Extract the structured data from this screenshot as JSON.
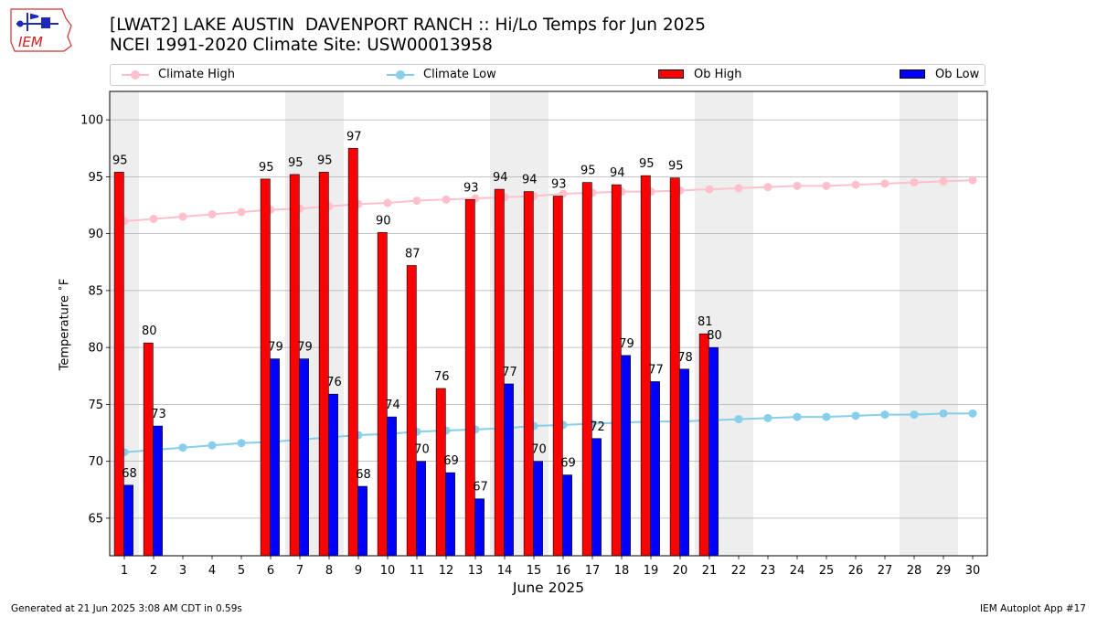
{
  "logo_text": "IEM",
  "footer": {
    "generated": "Generated at 21 Jun 2025 3:08 AM CDT in 0.59s",
    "app": "IEM Autoplot App #17"
  },
  "colors": {
    "climate_high": "#ffc0cb",
    "climate_low": "#87ceeb",
    "ob_high": "#ff0000",
    "ob_low": "#0000ff",
    "weekend_band": "#eeeeee",
    "grid": "#b0b0b0"
  },
  "chart_data": {
    "type": "bar",
    "title": "[LWAT2] LAKE AUSTIN  DAVENPORT RANCH :: Hi/Lo Temps for Jun 2025",
    "subtitle": "NCEI 1991-2020 Climate Site: USW00013958",
    "xlabel": "June 2025",
    "ylabel": "Temperature $^\\circ$F",
    "ylim": [
      61.7,
      102.5
    ],
    "yticks": [
      65,
      70,
      75,
      80,
      85,
      90,
      95,
      100
    ],
    "xlim": [
      0.5,
      30.5
    ],
    "days": [
      1,
      2,
      3,
      4,
      5,
      6,
      7,
      8,
      9,
      10,
      11,
      12,
      13,
      14,
      15,
      16,
      17,
      18,
      19,
      20,
      21,
      22,
      23,
      24,
      25,
      26,
      27,
      28,
      29,
      30
    ],
    "weekend_bands": [
      [
        0.5,
        1.5
      ],
      [
        6.5,
        8.5
      ],
      [
        13.5,
        15.5
      ],
      [
        20.5,
        22.5
      ],
      [
        27.5,
        29.5
      ]
    ],
    "grid": true,
    "legend_placement": "top",
    "legend": [
      "Climate High",
      "Climate Low",
      "Ob High",
      "Ob Low"
    ],
    "series": [
      {
        "name": "Climate High",
        "type": "line",
        "x": [
          1,
          2,
          3,
          4,
          5,
          6,
          7,
          8,
          9,
          10,
          11,
          12,
          13,
          14,
          15,
          16,
          17,
          18,
          19,
          20,
          21,
          22,
          23,
          24,
          25,
          26,
          27,
          28,
          29,
          30
        ],
        "values": [
          91.1,
          91.3,
          91.5,
          91.7,
          91.9,
          92.1,
          92.2,
          92.4,
          92.6,
          92.7,
          92.9,
          93.0,
          93.1,
          93.2,
          93.3,
          93.5,
          93.6,
          93.7,
          93.7,
          93.8,
          93.9,
          94.0,
          94.1,
          94.2,
          94.2,
          94.3,
          94.4,
          94.5,
          94.6,
          94.7
        ]
      },
      {
        "name": "Climate Low",
        "type": "line",
        "x": [
          1,
          2,
          3,
          4,
          5,
          6,
          7,
          8,
          9,
          10,
          11,
          12,
          13,
          14,
          15,
          16,
          17,
          18,
          19,
          20,
          21,
          22,
          23,
          24,
          25,
          26,
          27,
          28,
          29,
          30
        ],
        "values": [
          70.8,
          71.0,
          71.2,
          71.4,
          71.6,
          71.7,
          71.9,
          72.1,
          72.3,
          72.4,
          72.6,
          72.7,
          72.8,
          72.9,
          73.1,
          73.2,
          73.3,
          73.4,
          73.5,
          73.5,
          73.6,
          73.7,
          73.8,
          73.9,
          73.9,
          74.0,
          74.1,
          74.1,
          74.2,
          74.2
        ]
      },
      {
        "name": "Ob High",
        "type": "bar",
        "x": [
          1,
          2,
          6,
          7,
          8,
          9,
          10,
          11,
          12,
          13,
          14,
          15,
          16,
          17,
          18,
          19,
          20,
          21
        ],
        "values": [
          95.4,
          80.4,
          94.8,
          95.2,
          95.4,
          97.5,
          90.1,
          87.2,
          76.4,
          93.0,
          93.9,
          93.7,
          93.3,
          94.5,
          94.3,
          95.1,
          94.9,
          81.2
        ],
        "labels": [
          "95",
          "80",
          "95",
          "95",
          "95",
          "97",
          "90",
          "87",
          "76",
          "93",
          "94",
          "94",
          "93",
          "95",
          "94",
          "95",
          "95",
          "81"
        ]
      },
      {
        "name": "Ob Low",
        "type": "bar",
        "x": [
          1,
          2,
          6,
          7,
          8,
          9,
          10,
          11,
          12,
          13,
          14,
          15,
          16,
          17,
          18,
          19,
          20,
          21
        ],
        "values": [
          67.9,
          73.1,
          79.0,
          79.0,
          75.9,
          67.8,
          73.9,
          70.0,
          69.0,
          66.7,
          76.8,
          70.0,
          68.8,
          72.0,
          79.3,
          77.0,
          78.1,
          80.0
        ],
        "labels": [
          "68",
          "73",
          "79",
          "79",
          "76",
          "68",
          "74",
          "70",
          "69",
          "67",
          "77",
          "70",
          "69",
          "72",
          "79",
          "77",
          "78",
          "80"
        ]
      }
    ]
  }
}
